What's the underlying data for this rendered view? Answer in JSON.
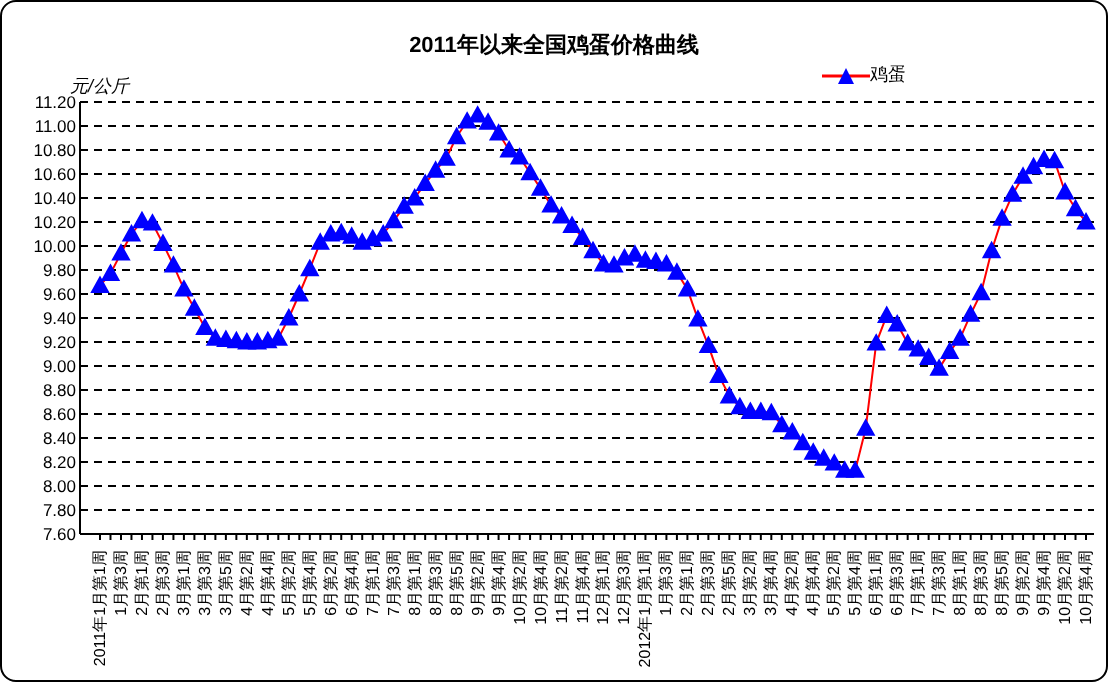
{
  "chart_data": {
    "type": "line",
    "title": "2011年以来全国鸡蛋价格曲线",
    "ylabel": "元/公斤",
    "categories": [
      "2011年1月第1周",
      null,
      "1月第3周",
      null,
      "2月第1周",
      null,
      "2月第3周",
      null,
      "3月第1周",
      null,
      "3月第3周",
      null,
      "3月第5周",
      null,
      "4月第2周",
      null,
      "4月第4周",
      null,
      "5月第2周",
      null,
      "5月第4周",
      null,
      "6月第2周",
      null,
      "6月第4周",
      null,
      "7月第1周",
      null,
      "7月第3周",
      null,
      "8月第1周",
      null,
      "8月第3周",
      null,
      "8月第5周",
      null,
      "9月第2周",
      null,
      "9月第4周",
      null,
      "10月第2周",
      null,
      "10月第4周",
      null,
      "11月第2周",
      null,
      "11月第4周",
      null,
      "12月第1周",
      null,
      "12月第3周",
      null,
      "2012年1月第1周",
      null,
      "1月第3周",
      null,
      "2月第1周",
      null,
      "2月第3周",
      null,
      "2月第5周",
      null,
      "3月第2周",
      null,
      "3月第4周",
      null,
      "4月第2周",
      null,
      "4月第4周",
      null,
      "5月第2周",
      null,
      "5月第4周",
      null,
      "6月第1周",
      null,
      "6月第3周",
      null,
      "7月第1周",
      null,
      "7月第3周",
      null,
      "8月第1周",
      null,
      "8月第3周",
      null,
      "8月第5周",
      null,
      "9月第2周",
      null,
      "9月第4周",
      null,
      "10月第2周",
      null,
      "10月第4周"
    ],
    "series": [
      {
        "name": "鸡蛋",
        "color": "#ff0000",
        "values": [
          9.67,
          9.77,
          9.94,
          10.1,
          10.21,
          10.19,
          10.02,
          9.84,
          9.64,
          9.48,
          9.32,
          9.23,
          9.22,
          9.21,
          9.2,
          9.2,
          9.21,
          9.23,
          9.4,
          9.6,
          9.81,
          10.03,
          10.1,
          10.11,
          10.08,
          10.03,
          10.06,
          10.1,
          10.21,
          10.33,
          10.4,
          10.52,
          10.63,
          10.73,
          10.91,
          11.04,
          11.09,
          11.03,
          10.94,
          10.8,
          10.74,
          10.61,
          10.48,
          10.34,
          10.25,
          10.17,
          10.07,
          9.96,
          9.85,
          9.84,
          9.9,
          9.93,
          9.88,
          9.87,
          9.85,
          9.78,
          9.64,
          9.39,
          9.17,
          8.92,
          8.75,
          8.66,
          8.62,
          8.62,
          8.61,
          8.51,
          8.45,
          8.36,
          8.28,
          8.23,
          8.19,
          8.13,
          8.13,
          8.48,
          9.19,
          9.42,
          9.35,
          9.19,
          9.14,
          9.07,
          8.98,
          9.12,
          9.23,
          9.43,
          9.61,
          9.96,
          10.23,
          10.43,
          10.58,
          10.66,
          10.72,
          10.71,
          10.45,
          10.31,
          10.2
        ]
      }
    ],
    "ylim": [
      7.6,
      11.2
    ],
    "yticks": [
      {
        "value": 7.6,
        "label": "7.60"
      },
      {
        "value": 7.8,
        "label": "7.80"
      },
      {
        "value": 8,
        "label": "8.00"
      },
      {
        "value": 8.2,
        "label": "8.20"
      },
      {
        "value": 8.4,
        "label": "8.40"
      },
      {
        "value": 8.6,
        "label": "8.60"
      },
      {
        "value": 8.8,
        "label": "8.80"
      },
      {
        "value": 9,
        "label": "9.00"
      },
      {
        "value": 9.2,
        "label": "9.20"
      },
      {
        "value": 9.4,
        "label": "9.40"
      },
      {
        "value": 9.6,
        "label": "9.60"
      },
      {
        "value": 9.8,
        "label": "9.80"
      },
      {
        "value": 10,
        "label": "10.00"
      },
      {
        "value": 10.2,
        "label": "10.20"
      },
      {
        "value": 10.4,
        "label": "10.40"
      },
      {
        "value": 10.6,
        "label": "10.60"
      },
      {
        "value": 10.8,
        "label": "10.80"
      },
      {
        "value": 11,
        "label": "11.00"
      },
      {
        "value": 11.2,
        "label": "11.20"
      }
    ],
    "grid": "y",
    "legend": "top right",
    "marker": "triangle"
  }
}
